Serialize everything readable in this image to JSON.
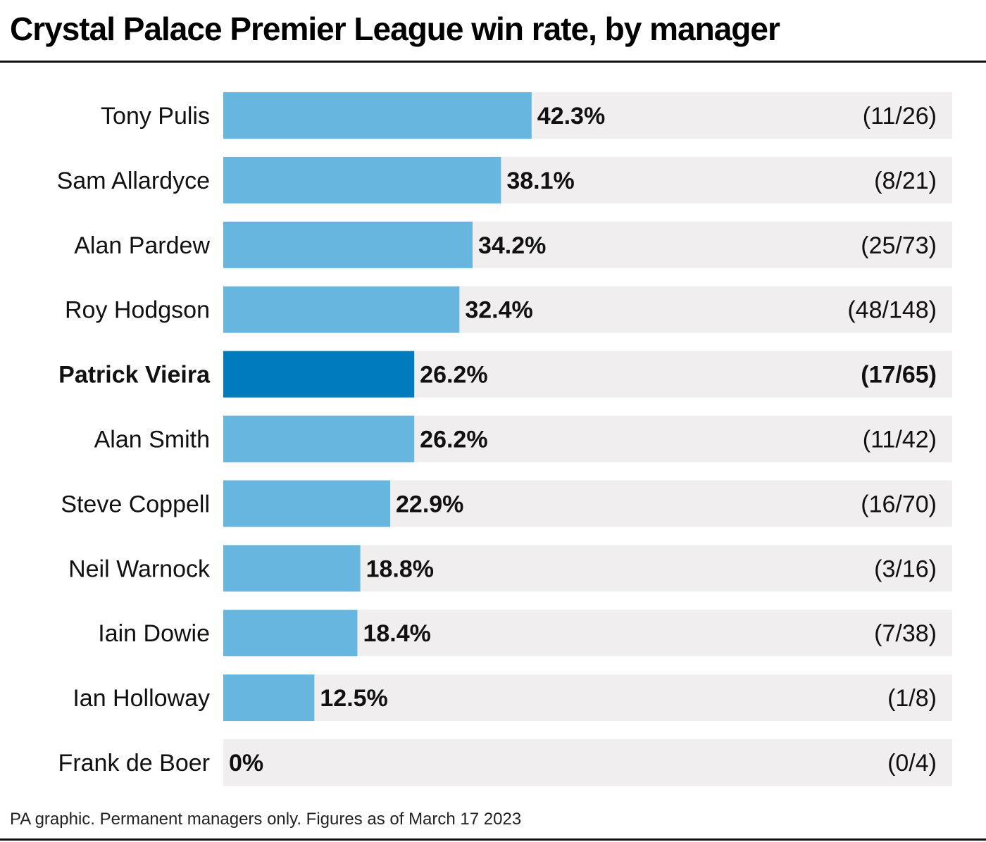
{
  "title": "Crystal Palace Premier League win rate, by manager",
  "footnote": "PA graphic. Permanent managers only. Figures as of March 17 2023",
  "colors": {
    "bar": "#66b6e0",
    "bar_highlight": "#007bbd",
    "track": "#f0eeef",
    "text": "#111111"
  },
  "chart_data": {
    "type": "bar",
    "orientation": "horizontal",
    "xlim": [
      0,
      100
    ],
    "categories": [
      "Tony Pulis",
      "Sam Allardyce",
      "Alan Pardew",
      "Roy Hodgson",
      "Patrick Vieira",
      "Alan Smith",
      "Steve Coppell",
      "Neil Warnock",
      "Iain Dowie",
      "Ian Holloway",
      "Frank de Boer"
    ],
    "values": [
      42.3,
      38.1,
      34.2,
      32.4,
      26.2,
      26.2,
      22.9,
      18.8,
      18.4,
      12.5,
      0
    ],
    "value_labels": [
      "42.3%",
      "38.1%",
      "34.2%",
      "32.4%",
      "26.2%",
      "26.2%",
      "22.9%",
      "18.8%",
      "18.4%",
      "12.5%",
      "0%"
    ],
    "record_labels": [
      "(11/26)",
      "(8/21)",
      "(25/73)",
      "(48/148)",
      "(17/65)",
      "(11/42)",
      "(16/70)",
      "(3/16)",
      "(7/38)",
      "(1/8)",
      "(0/4)"
    ],
    "highlight": "Patrick Vieira"
  }
}
